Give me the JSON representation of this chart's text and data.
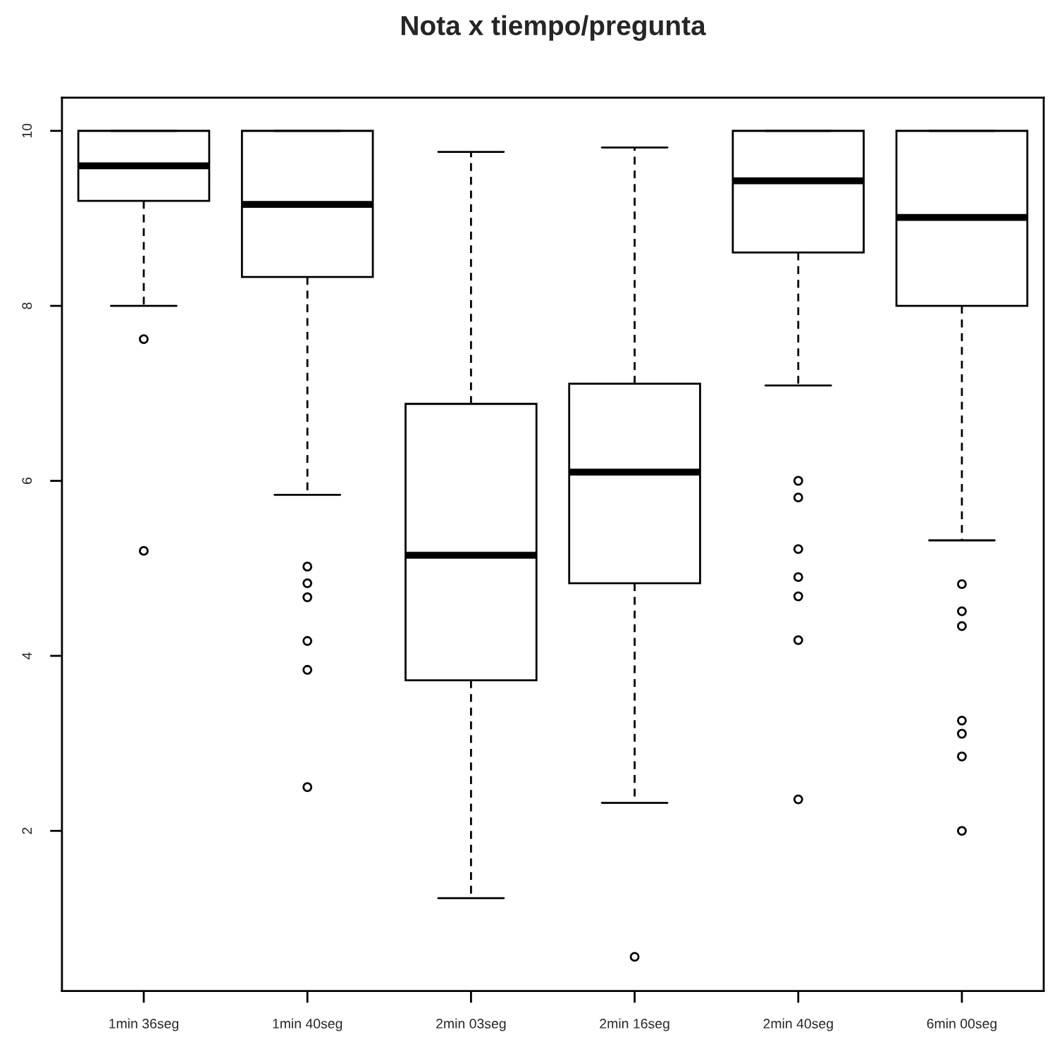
{
  "chart_data": {
    "type": "box",
    "title": "Nota x tiempo/pregunta",
    "categories": [
      "1min 36seg",
      "1min 40seg",
      "2min 03seg",
      "2min 16seg",
      "2min 40seg",
      "6min 00seg"
    ],
    "boxes": [
      {
        "low": 8.0,
        "q1": 9.2,
        "median": 9.6,
        "q3": 10,
        "high": 10,
        "outliers": [
          7.62,
          5.2
        ]
      },
      {
        "low": 5.84,
        "q1": 8.33,
        "median": 9.16,
        "q3": 10,
        "high": 10,
        "outliers": [
          5.02,
          4.83,
          4.67,
          4.17,
          3.84,
          2.5
        ]
      },
      {
        "low": 1.23,
        "q1": 3.72,
        "median": 5.15,
        "q3": 6.88,
        "high": 9.76
      },
      {
        "low": 2.32,
        "q1": 4.83,
        "median": 6.1,
        "q3": 7.11,
        "high": 9.81,
        "outliers": [
          0.56
        ]
      },
      {
        "low": 7.09,
        "q1": 8.61,
        "median": 9.43,
        "q3": 10,
        "high": 10,
        "outliers": [
          6.0,
          5.81,
          5.22,
          4.9,
          4.68,
          4.18,
          2.36
        ]
      },
      {
        "low": 5.32,
        "q1": 8.0,
        "median": 9.01,
        "q3": 10,
        "high": 10,
        "outliers": [
          4.82,
          4.51,
          4.34,
          3.26,
          3.11,
          2.85,
          2.0
        ]
      }
    ],
    "ylim": [
      0.17,
      10.38
    ],
    "yticks": [
      2,
      4,
      6,
      8,
      10
    ]
  }
}
